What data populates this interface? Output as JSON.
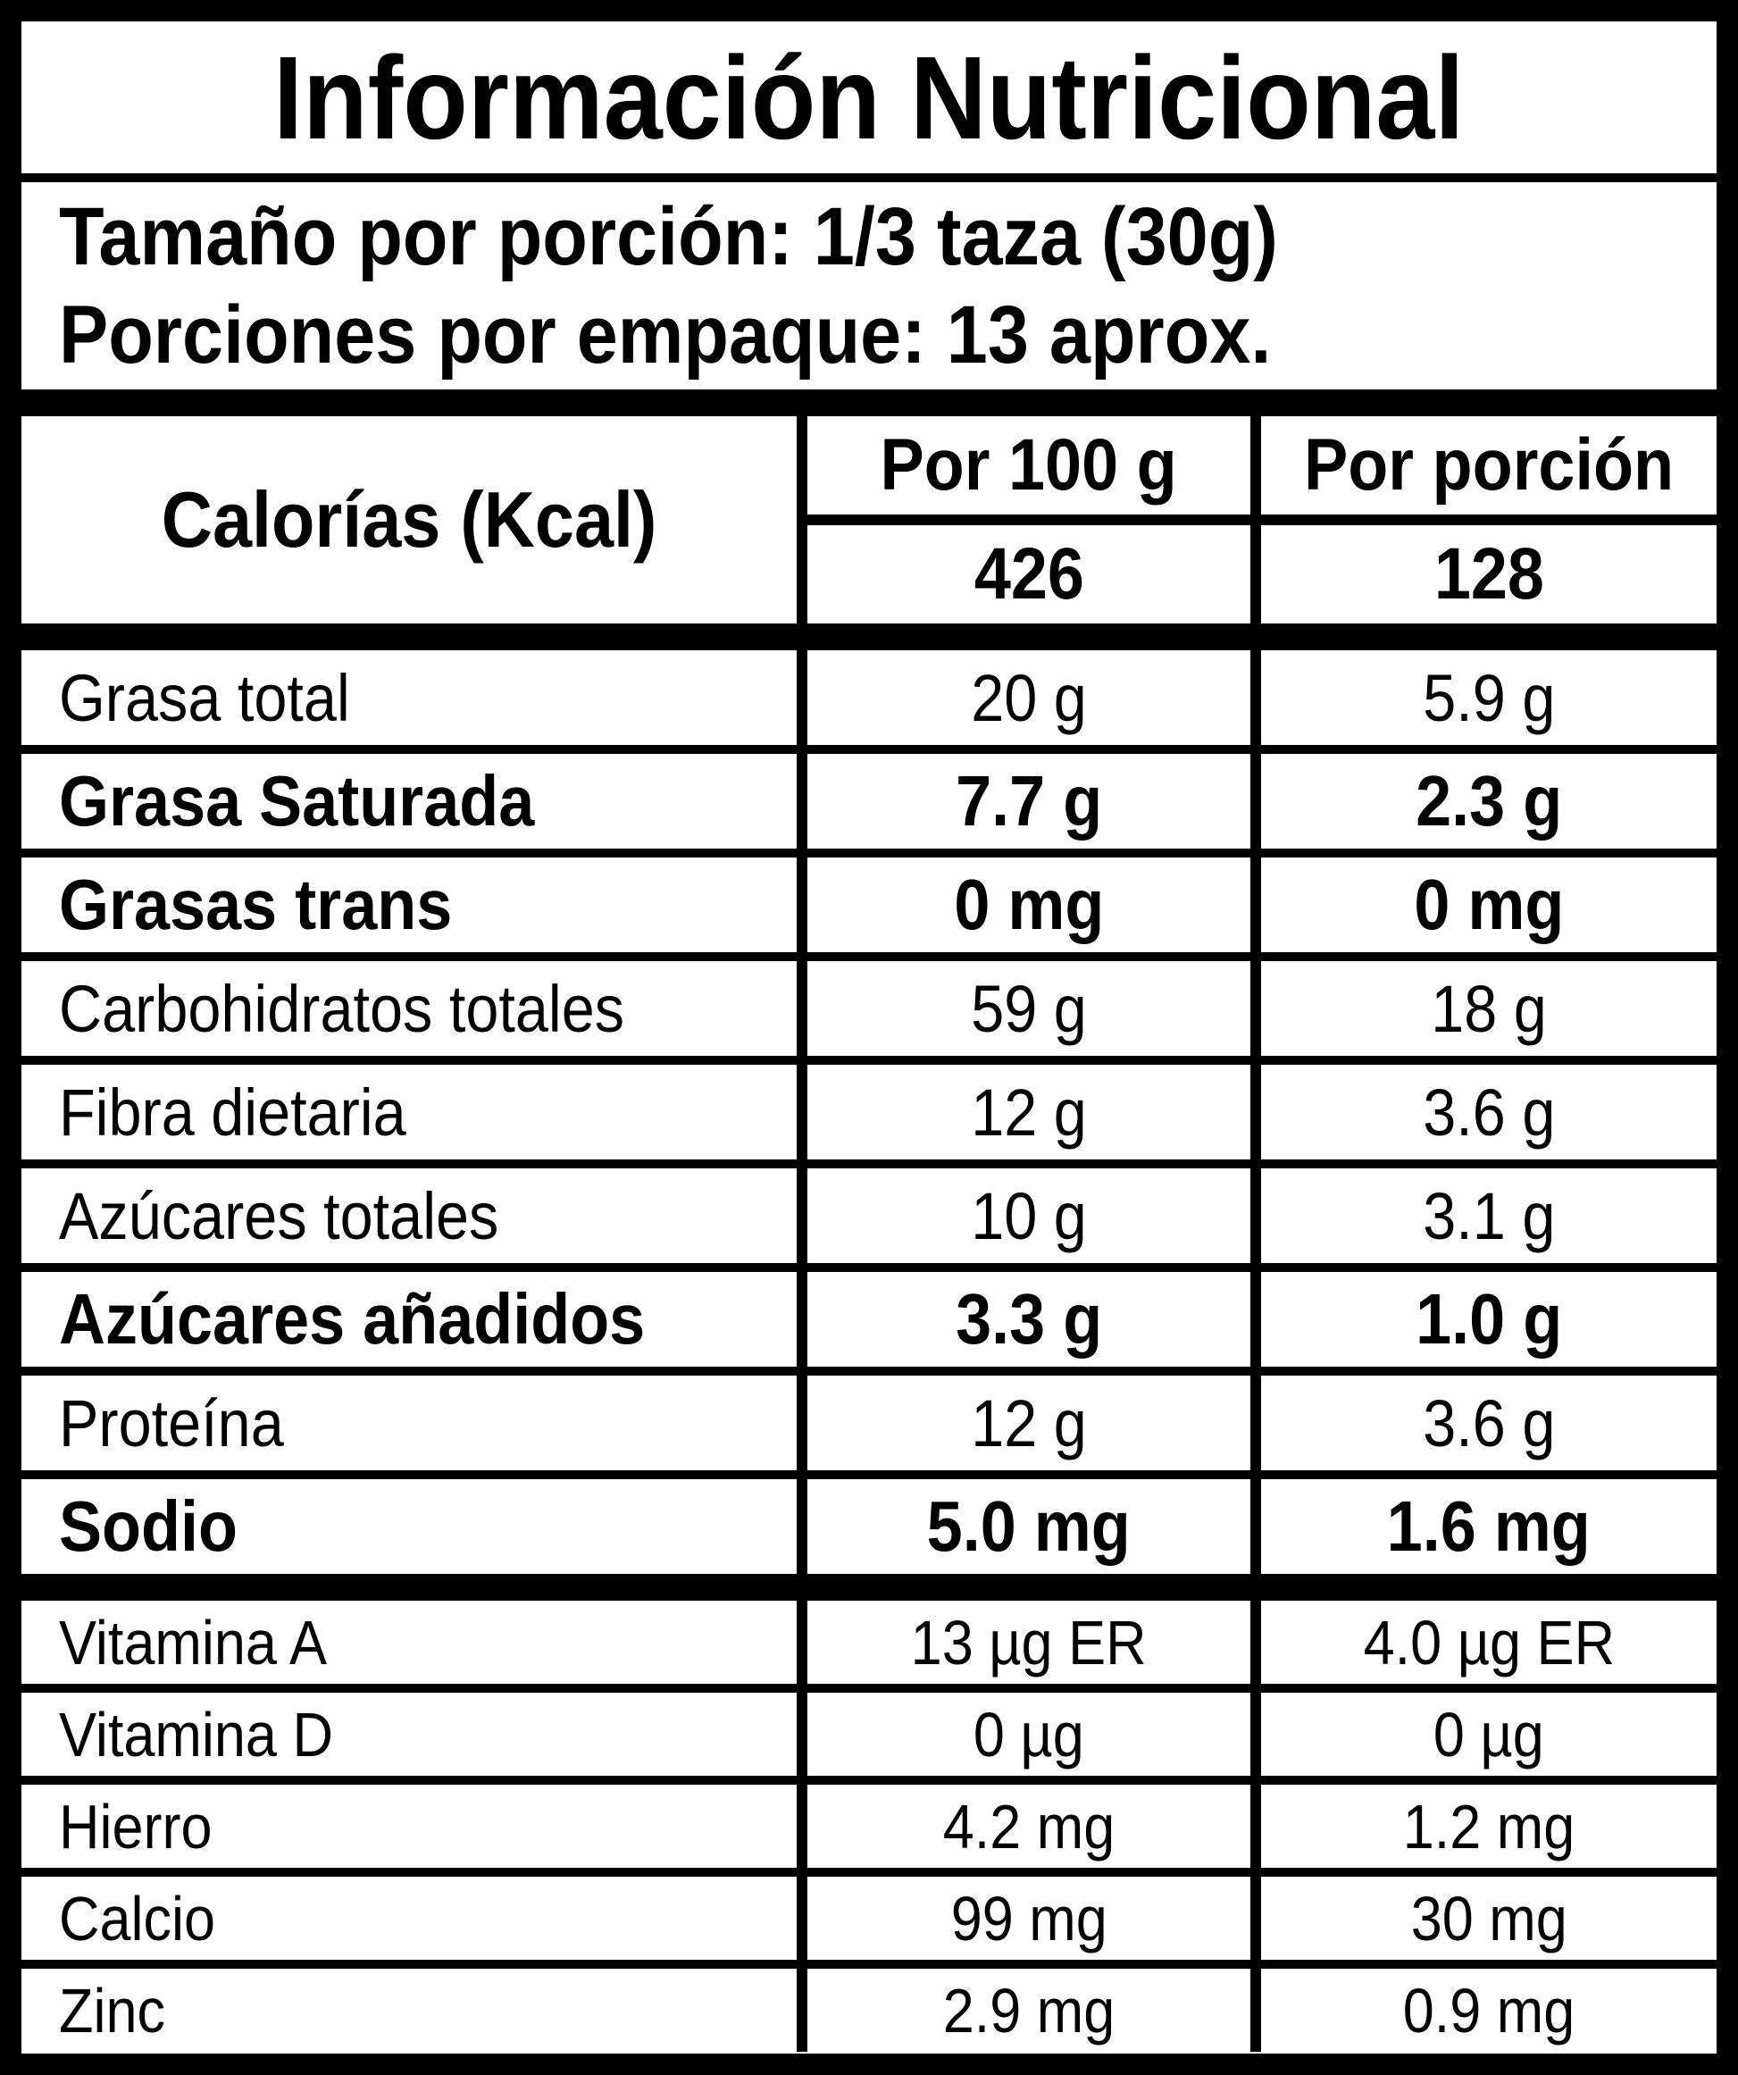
{
  "title": "Información Nutricional",
  "serving": {
    "line1": "Tamaño por porción: 1/3 taza (30g)",
    "line2": "Porciones por empaque: 13 aprox."
  },
  "calories": {
    "label": "Calorías (Kcal)",
    "col1_header": "Por 100 g",
    "col2_header": "Por porción",
    "per_100g": "426",
    "per_portion": "128"
  },
  "rows": [
    {
      "label": "Grasa total",
      "per_100g": "20 g",
      "per_portion": "5.9 g",
      "bold": false,
      "group": "main"
    },
    {
      "label": "Grasa Saturada",
      "per_100g": "7.7 g",
      "per_portion": "2.3 g",
      "bold": true,
      "group": "main"
    },
    {
      "label": "Grasas trans",
      "per_100g": "0 mg",
      "per_portion": "0 mg",
      "bold": true,
      "group": "main"
    },
    {
      "label": "Carbohidratos totales",
      "per_100g": "59 g",
      "per_portion": "18 g",
      "bold": false,
      "group": "main"
    },
    {
      "label": "Fibra dietaria",
      "per_100g": "12 g",
      "per_portion": "3.6 g",
      "bold": false,
      "group": "main"
    },
    {
      "label": "Azúcares totales",
      "per_100g": "10 g",
      "per_portion": "3.1 g",
      "bold": false,
      "group": "main"
    },
    {
      "label": "Azúcares añadidos",
      "per_100g": "3.3 g",
      "per_portion": "1.0 g",
      "bold": true,
      "group": "main"
    },
    {
      "label": "Proteína",
      "per_100g": "12 g",
      "per_portion": "3.6 g",
      "bold": false,
      "group": "main"
    },
    {
      "label": "Sodio",
      "per_100g": "5.0 mg",
      "per_portion": "1.6 mg",
      "bold": true,
      "group": "main"
    },
    {
      "label": "Vitamina A",
      "per_100g": "13 µg ER",
      "per_portion": "4.0 µg ER",
      "bold": false,
      "group": "micro"
    },
    {
      "label": "Vitamina D",
      "per_100g": "0 µg",
      "per_portion": "0 µg",
      "bold": false,
      "group": "micro"
    },
    {
      "label": "Hierro",
      "per_100g": "4.2 mg",
      "per_portion": "1.2 mg",
      "bold": false,
      "group": "micro"
    },
    {
      "label": "Calcio",
      "per_100g": "99 mg",
      "per_portion": "30 mg",
      "bold": false,
      "group": "micro"
    },
    {
      "label": "Zinc",
      "per_100g": "2.9 mg",
      "per_portion": "0.9 mg",
      "bold": false,
      "group": "micro"
    }
  ],
  "colors": {
    "border": "#000000",
    "background": "#ffffff",
    "text": "#000000"
  }
}
